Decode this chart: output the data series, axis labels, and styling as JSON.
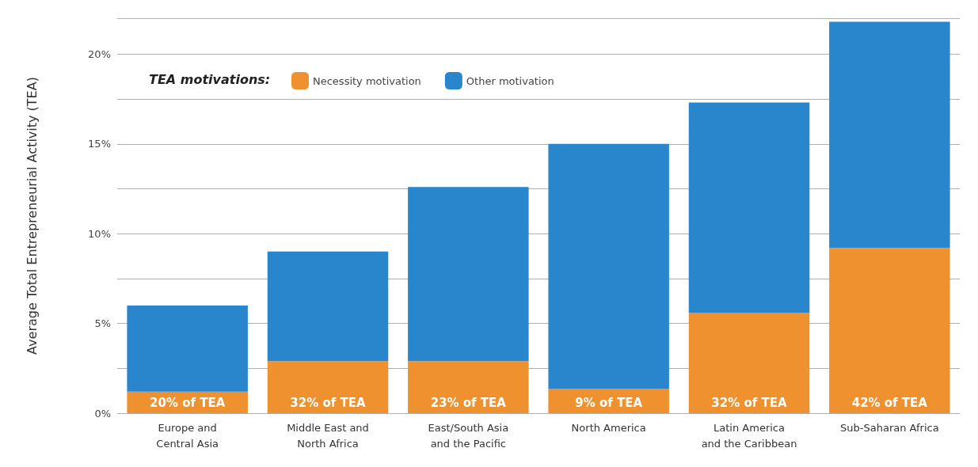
{
  "chart_data": {
    "type": "bar",
    "stacked": true,
    "ylabel": "Average Total Entrepreneurial Activity (TEA)",
    "legend_title": "TEA motivations:",
    "legend": "top left",
    "categories": [
      "Europe and\nCentral Asia",
      "Middle East and\nNorth Africa",
      "East/South Asia\nand the Pacific",
      "North America",
      "Latin America\nand the Caribbean",
      "Sub-Saharan Africa"
    ],
    "series": [
      {
        "name": "Necessity motivation",
        "color": "#f0912f",
        "values": [
          1.2,
          2.9,
          2.9,
          1.35,
          5.6,
          9.2
        ]
      },
      {
        "name": "Other motivation",
        "color": "#2a86cc",
        "values": [
          4.8,
          6.1,
          9.7,
          13.65,
          11.7,
          12.6
        ]
      }
    ],
    "ylim": [
      0,
      22
    ],
    "yticks": [
      {
        "value": 0,
        "label": "0%"
      },
      {
        "value": 2.5,
        "label": null
      },
      {
        "value": 5,
        "label": "5%"
      },
      {
        "value": 7.5,
        "label": null
      },
      {
        "value": 10,
        "label": "10%"
      },
      {
        "value": 12.5,
        "label": null
      },
      {
        "value": 15,
        "label": "15%"
      },
      {
        "value": 17.5,
        "label": null
      },
      {
        "value": 20,
        "label": "20%"
      }
    ],
    "annotations": [
      {
        "text": "20% of TEA",
        "x": "Europe and\nCentral Asia",
        "y": 0
      },
      {
        "text": "32% of TEA",
        "x": "Middle East and\nNorth Africa",
        "y": 0
      },
      {
        "text": "23% of TEA",
        "x": "East/South Asia\nand the Pacific",
        "y": 0
      },
      {
        "text": "9% of TEA",
        "x": "North America",
        "y": 0
      },
      {
        "text": "32% of TEA",
        "x": "Latin America\nand the Caribbean",
        "y": 0
      },
      {
        "text": "42% of TEA",
        "x": "Sub-Saharan Africa",
        "y": 0
      }
    ],
    "grid": "y"
  }
}
